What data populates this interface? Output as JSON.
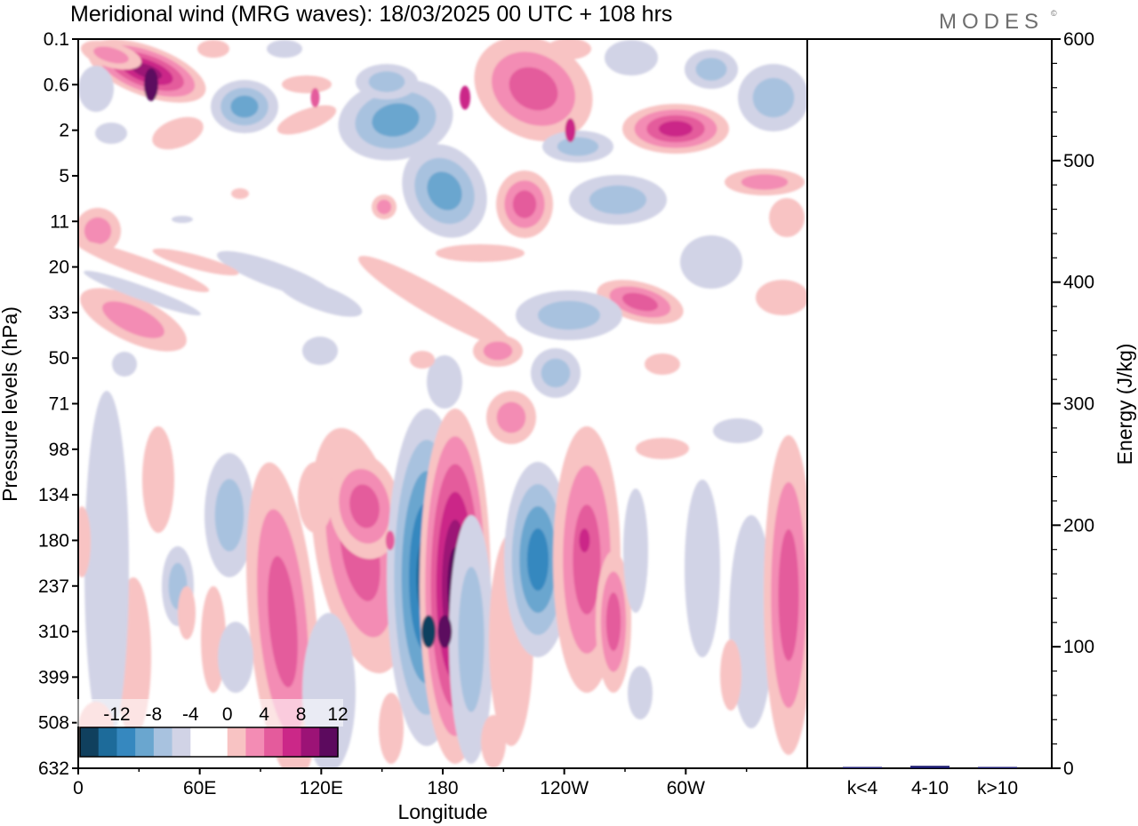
{
  "title": "Meridional wind (MRG waves):  18/03/2025  00 UTC  + 108 hrs",
  "logo": "MODES",
  "logo_mark": "©",
  "chart_data": [
    {
      "type": "heatmap",
      "variable": "Meridional wind (MRG waves)",
      "xlabel": "Longitude",
      "ylabel": "Pressure levels (hPa)",
      "x_ticks": [
        "0",
        "60E",
        "120E",
        "180",
        "120W",
        "60W"
      ],
      "x_tick_values": [
        0,
        60,
        120,
        180,
        240,
        300
      ],
      "xlim": [
        0,
        360
      ],
      "y_ticks": [
        "0.1",
        "0.6",
        "2",
        "5",
        "11",
        "20",
        "33",
        "50",
        "71",
        "98",
        "134",
        "180",
        "237",
        "310",
        "399",
        "508",
        "632"
      ],
      "y_scale": "pressure levels (one tick per level, top = 0.1 hPa)",
      "colorbar": {
        "labels": [
          "-12",
          "-8",
          "-4",
          "0",
          "4",
          "8",
          "12"
        ],
        "levels": [
          -14,
          -12,
          -10,
          -8,
          -6,
          -4,
          -2,
          2,
          4,
          6,
          8,
          10,
          12,
          14
        ],
        "colors": [
          "#10405e",
          "#1d6b9a",
          "#3688bf",
          "#6aa6cf",
          "#a8c2df",
          "#d1d3e6",
          "#ffffff",
          "#ffffff",
          "#f8c3c3",
          "#f38cb4",
          "#e45b9c",
          "#cb2888",
          "#9c1376",
          "#5c0a5e"
        ]
      },
      "field_features": [
        {
          "lon": 173,
          "level": "310",
          "value": -13,
          "sign": "negative"
        },
        {
          "lon": 181,
          "level": "310",
          "value": 14,
          "sign": "positive"
        },
        {
          "lon": 36,
          "level": "0.6",
          "value": 13,
          "sign": "positive"
        },
        {
          "lon": 154,
          "level": "180",
          "value": 7,
          "sign": "positive"
        },
        {
          "lon": 250,
          "level": "180",
          "value": 8,
          "sign": "positive"
        },
        {
          "lon": 117,
          "level": "1",
          "value": 7,
          "sign": "positive"
        },
        {
          "lon": 243,
          "level": "2",
          "value": 9,
          "sign": "positive"
        },
        {
          "lon": 191,
          "level": "1",
          "value": 8,
          "sign": "positive"
        }
      ]
    },
    {
      "type": "bar",
      "categories": [
        "k<4",
        "4-10",
        "k>10"
      ],
      "values": [
        0,
        2,
        0
      ],
      "ylabel": "Energy (J/kg)",
      "y_ticks": [
        "0",
        "100",
        "200",
        "300",
        "400",
        "500",
        "600"
      ],
      "ylim": [
        0,
        600
      ]
    }
  ],
  "colors": {
    "bar": "#1a1a6e",
    "axis": "#000000"
  }
}
